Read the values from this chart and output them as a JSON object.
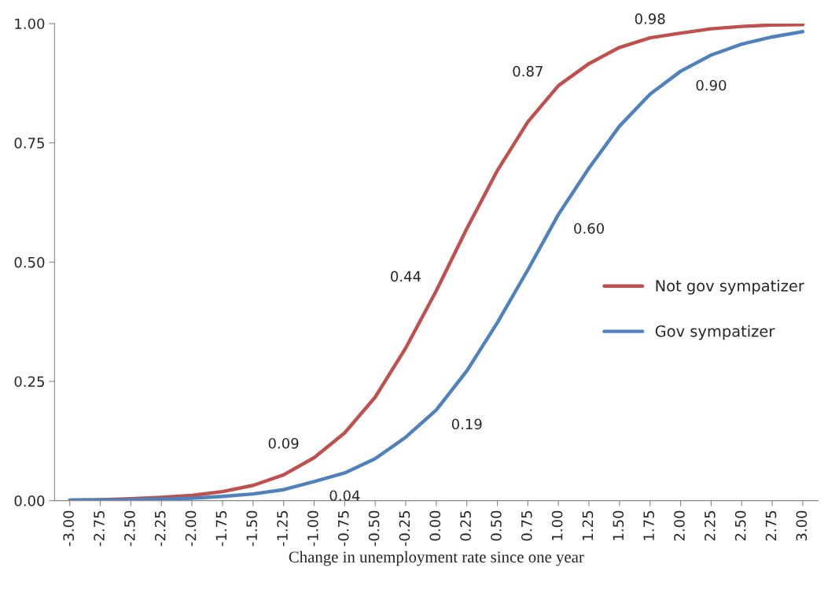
{
  "chart_data": {
    "type": "line",
    "xlabel": "Change in unemployment rate since one year",
    "categories": [
      "-3.00",
      "-2.75",
      "-2.50",
      "-2.25",
      "-2.00",
      "-1.75",
      "-1.50",
      "-1.25",
      "-1.00",
      "-0.75",
      "-0.50",
      "-0.25",
      "0.00",
      "0.25",
      "0.50",
      "0.75",
      "1.00",
      "1.25",
      "1.50",
      "1.75",
      "2.00",
      "2.25",
      "2.50",
      "2.75",
      "3.00"
    ],
    "series": [
      {
        "name": "Not gov sympatizer",
        "color": "#c0504d",
        "values": [
          0.001,
          0.002,
          0.004,
          0.007,
          0.011,
          0.019,
          0.032,
          0.054,
          0.09,
          0.142,
          0.217,
          0.32,
          0.44,
          0.57,
          0.692,
          0.794,
          0.87,
          0.916,
          0.95,
          0.97,
          0.98,
          0.989,
          0.994,
          0.997,
          0.998
        ],
        "value_labels": [
          null,
          null,
          null,
          null,
          null,
          null,
          null,
          null,
          "0.09",
          null,
          null,
          null,
          "0.44",
          null,
          null,
          null,
          "0.87",
          null,
          null,
          null,
          "0.98",
          null,
          null,
          null,
          null
        ]
      },
      {
        "name": "Gov sympatizer",
        "color": "#4f81bd",
        "values": [
          0.001,
          0.001,
          0.002,
          0.003,
          0.005,
          0.009,
          0.014,
          0.023,
          0.04,
          0.058,
          0.088,
          0.133,
          0.19,
          0.272,
          0.373,
          0.484,
          0.6,
          0.697,
          0.785,
          0.852,
          0.9,
          0.934,
          0.957,
          0.972,
          0.983
        ],
        "value_labels": [
          null,
          null,
          null,
          null,
          null,
          null,
          null,
          null,
          "0.04",
          null,
          null,
          null,
          "0.19",
          null,
          null,
          null,
          "0.60",
          null,
          null,
          null,
          "0.90",
          null,
          null,
          null,
          null
        ]
      }
    ],
    "ylim": [
      0,
      1
    ],
    "yticks": [
      {
        "value": 0,
        "label": "0.00"
      },
      {
        "value": 0.25,
        "label": "0.25"
      },
      {
        "value": 0.5,
        "label": "0.50"
      },
      {
        "value": 0.75,
        "label": "0.75"
      },
      {
        "value": 1,
        "label": "1.00"
      }
    ],
    "grid": false,
    "legend": "right",
    "marker": "none",
    "line_style": "solid"
  }
}
